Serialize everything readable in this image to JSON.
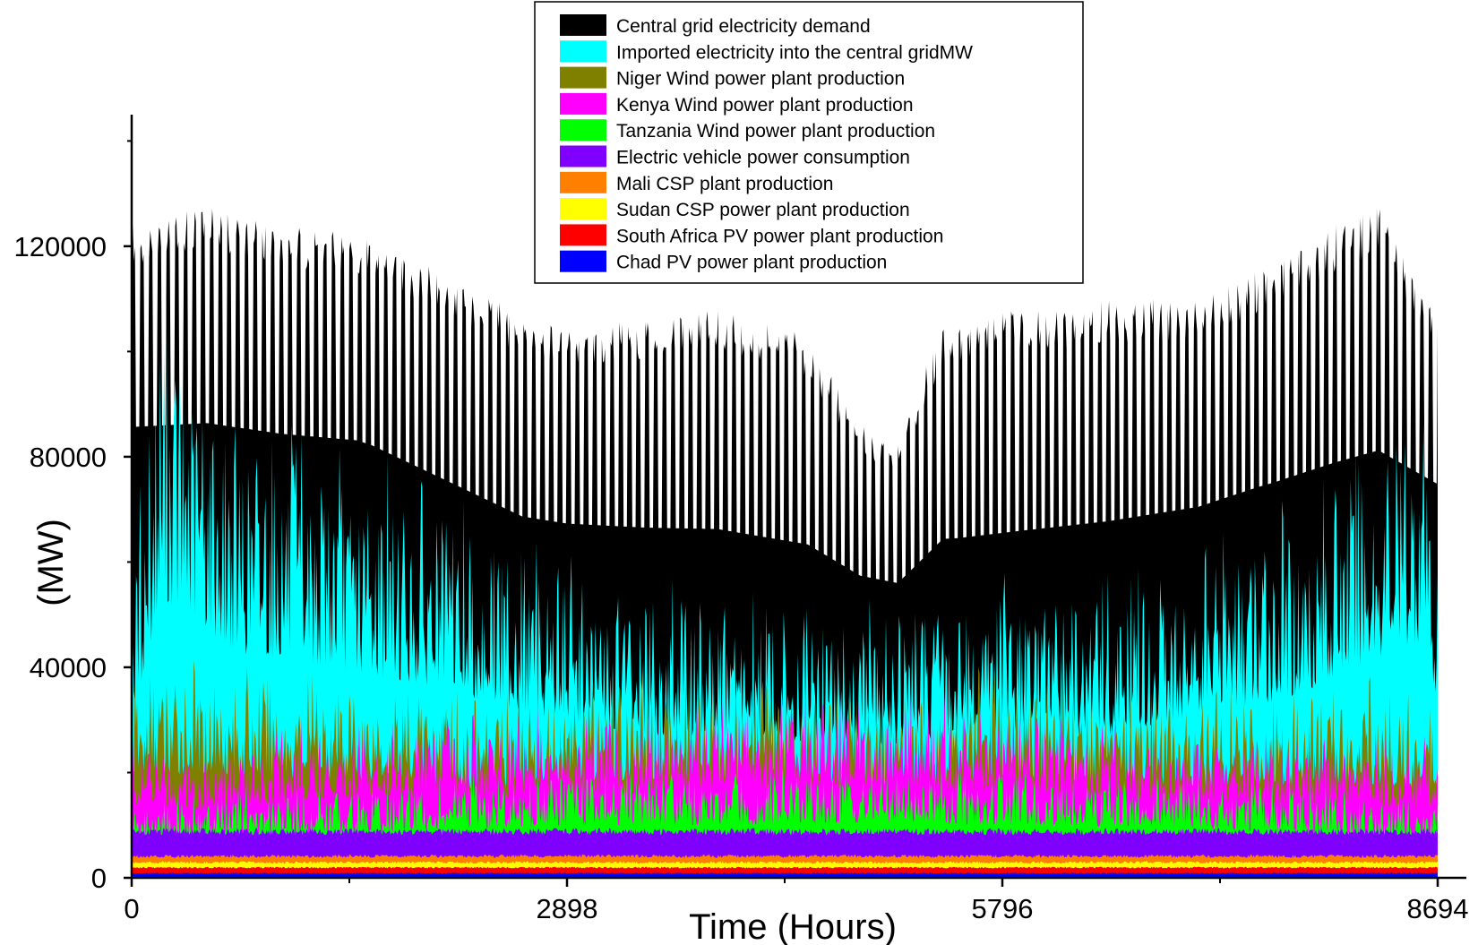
{
  "chart_data": {
    "type": "area",
    "stacked": true,
    "xlabel": "Time (Hours)",
    "ylabel": "(MW)",
    "xlim": [
      0,
      8694
    ],
    "ylim": [
      0,
      145000
    ],
    "x_ticks": [
      0,
      2898,
      5796,
      8694
    ],
    "x_ticks_minor": [
      1449,
      4347,
      7245
    ],
    "y_ticks": [
      0,
      40000,
      80000,
      120000
    ],
    "grid": false,
    "legend_position": "top-center",
    "series": [
      {
        "name": "Central grid electricity demand",
        "color": "#000000",
        "envelope": {
          "x": [
            0,
            500,
            1000,
            1600,
            2200,
            2600,
            2900,
            3400,
            3900,
            4500,
            4850,
            5100,
            5400,
            5900,
            6500,
            7100,
            7600,
            8000,
            8300,
            8694
          ],
          "y": [
            124000,
            128000,
            124000,
            122000,
            113000,
            107000,
            105000,
            106000,
            108000,
            103000,
            86000,
            82000,
            106000,
            108000,
            110000,
            110000,
            117000,
            124000,
            128000,
            106000
          ]
        },
        "baseline": {
          "x": [
            0,
            1500,
            2600,
            3500,
            4500,
            5500,
            6500,
            7500,
            8694
          ],
          "y": [
            65000,
            62000,
            48000,
            45000,
            42000,
            42000,
            45000,
            52000,
            58000
          ]
        }
      },
      {
        "name": "Imported electricity into the central gridMW",
        "color": "#00ffff",
        "envelope": {
          "x": [
            0,
            200,
            700,
            1400,
            2000,
            2600,
            3300,
            4200,
            5000,
            5800,
            6500,
            7200,
            7700,
            8200,
            8600,
            8694
          ],
          "y": [
            65000,
            118000,
            95000,
            88000,
            80000,
            70000,
            60000,
            58000,
            56000,
            62000,
            60000,
            70000,
            75000,
            90000,
            100000,
            70000
          ]
        }
      },
      {
        "name": "Niger Wind power plant production",
        "color": "#808000",
        "envelope": {
          "x": [
            0,
            400,
            1000,
            1700,
            2300,
            3000,
            3700,
            4400,
            5100,
            5800,
            6500,
            7300,
            8000,
            8694
          ],
          "y": [
            42000,
            44000,
            42000,
            41000,
            37000,
            40000,
            42000,
            38000,
            36000,
            42000,
            40000,
            38000,
            40000,
            38000
          ]
        }
      },
      {
        "name": "Kenya Wind power plant production",
        "color": "#ff00ff",
        "envelope": {
          "x": [
            0,
            600,
            1200,
            2000,
            2800,
            3600,
            4400,
            5200,
            6000,
            6800,
            7600,
            8694
          ],
          "y": [
            30000,
            28000,
            33000,
            34000,
            33000,
            36000,
            38000,
            37000,
            35000,
            32000,
            30000,
            29000
          ]
        }
      },
      {
        "name": "Tanzania Wind power plant production",
        "color": "#00ff00",
        "envelope": {
          "x": [
            0,
            1000,
            2000,
            3000,
            4000,
            5000,
            6000,
            7000,
            8000,
            8694
          ],
          "y": [
            16000,
            18000,
            20000,
            22000,
            22000,
            23000,
            22000,
            21000,
            18000,
            16000
          ]
        }
      },
      {
        "name": "Electric vehicle power consumption",
        "color": "#8000ff",
        "level": 9000
      },
      {
        "name": "Mali CSP plant production",
        "color": "#ff8000",
        "level": 4200
      },
      {
        "name": "Sudan CSP power plant production",
        "color": "#ffff00",
        "level": 3000
      },
      {
        "name": "South Africa PV power plant production",
        "color": "#ff0000",
        "level": 2000
      },
      {
        "name": "Chad PV power plant production",
        "color": "#0000ff",
        "level": 900
      }
    ]
  }
}
